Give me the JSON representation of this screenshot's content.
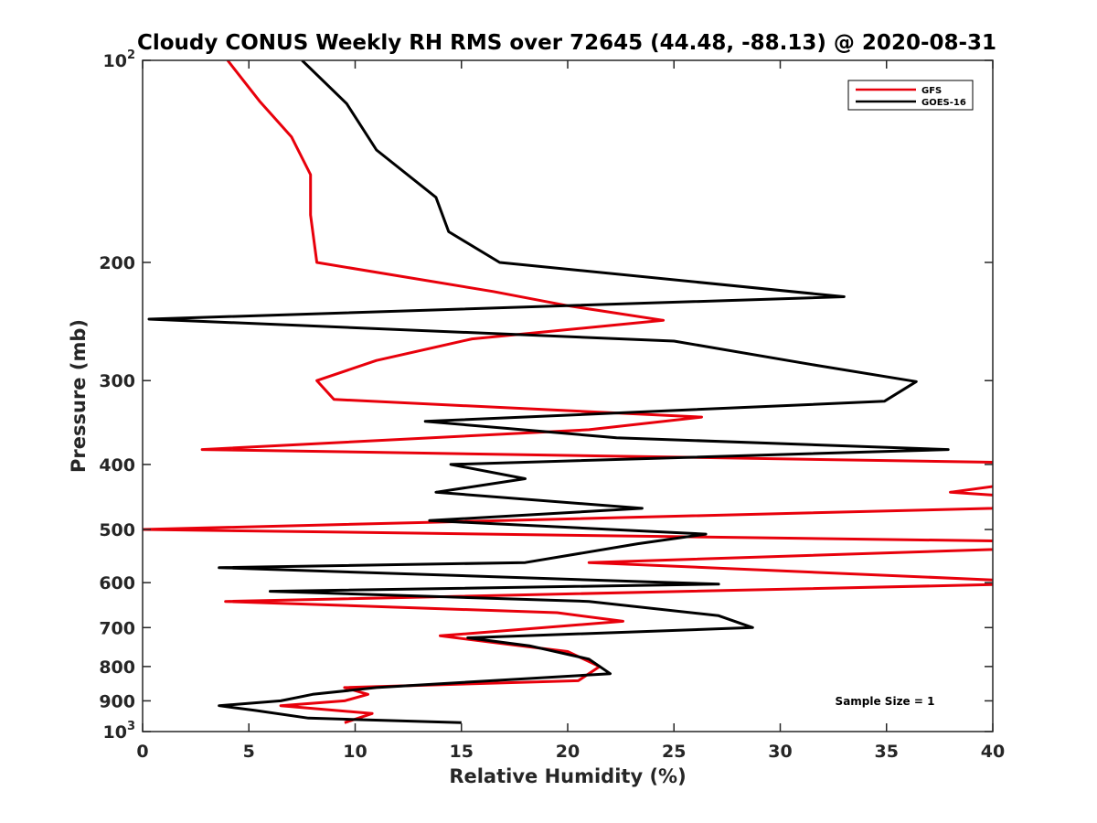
{
  "chart_data": {
    "type": "line",
    "title": "Cloudy CONUS Weekly RH RMS over 72645 (44.48, -88.13) @ 2020-08-31",
    "xlabel": "Relative Humidity (%)",
    "ylabel": "Pressure (mb)",
    "xlim": [
      0,
      40
    ],
    "ylim": [
      100,
      1000
    ],
    "y_scale": "log",
    "y_reversed": true,
    "x_ticks": [
      "0",
      "5",
      "10",
      "15",
      "20",
      "25",
      "30",
      "35",
      "40"
    ],
    "y_ticks": [
      {
        "value": 100,
        "base": "10",
        "exp": "2"
      },
      {
        "value": 200,
        "label": "200"
      },
      {
        "value": 300,
        "label": "300"
      },
      {
        "value": 400,
        "label": "400"
      },
      {
        "value": 500,
        "label": "500"
      },
      {
        "value": 600,
        "label": "600"
      },
      {
        "value": 700,
        "label": "700"
      },
      {
        "value": 800,
        "label": "800"
      },
      {
        "value": 900,
        "label": "900"
      },
      {
        "value": 1000,
        "base": "10",
        "exp": "3"
      }
    ],
    "legend_position": "top-right",
    "annotation": "Sample Size = 1",
    "series": [
      {
        "name": "GFS",
        "color": "#e8000b",
        "points": [
          [
            4.0,
            100
          ],
          [
            5.5,
            115
          ],
          [
            7.0,
            130
          ],
          [
            7.9,
            148
          ],
          [
            7.9,
            170
          ],
          [
            8.2,
            200
          ],
          [
            16.5,
            221
          ],
          [
            20.0,
            232
          ],
          [
            24.5,
            244
          ],
          [
            15.5,
            260
          ],
          [
            11.0,
            280
          ],
          [
            8.2,
            300
          ],
          [
            9.0,
            320
          ],
          [
            26.3,
            340
          ],
          [
            21.0,
            355
          ],
          [
            2.8,
            380
          ],
          [
            40.0,
            397
          ],
          [
            40.3,
            430
          ],
          [
            38.0,
            440
          ],
          [
            40.3,
            445
          ],
          [
            40.0,
            465
          ],
          [
            0.0,
            500
          ],
          [
            40.0,
            520
          ],
          [
            40.3,
            535
          ],
          [
            21.0,
            560
          ],
          [
            40.3,
            595
          ],
          [
            40.0,
            604
          ],
          [
            3.9,
            640
          ],
          [
            19.5,
            665
          ],
          [
            22.6,
            685
          ],
          [
            14.0,
            720
          ],
          [
            17.0,
            740
          ],
          [
            20.0,
            760
          ],
          [
            21.5,
            800
          ],
          [
            20.5,
            840
          ],
          [
            9.5,
            860
          ],
          [
            10.6,
            880
          ],
          [
            9.5,
            900
          ],
          [
            6.5,
            915
          ],
          [
            10.8,
            940
          ],
          [
            9.5,
            970
          ]
        ]
      },
      {
        "name": "GOES-16",
        "color": "#000000",
        "points": [
          [
            7.5,
            100
          ],
          [
            9.6,
            116
          ],
          [
            11.0,
            136
          ],
          [
            13.8,
            160
          ],
          [
            14.4,
            180
          ],
          [
            16.8,
            200
          ],
          [
            33.0,
            225
          ],
          [
            0.3,
            243
          ],
          [
            25.0,
            262
          ],
          [
            31.8,
            285
          ],
          [
            36.4,
            301
          ],
          [
            34.9,
            322
          ],
          [
            13.3,
            345
          ],
          [
            22.3,
            365
          ],
          [
            37.9,
            380
          ],
          [
            14.5,
            400
          ],
          [
            18.0,
            420
          ],
          [
            13.8,
            440
          ],
          [
            23.5,
            465
          ],
          [
            13.5,
            485
          ],
          [
            26.5,
            508
          ],
          [
            23.3,
            525
          ],
          [
            18.0,
            560
          ],
          [
            3.6,
            570
          ],
          [
            27.1,
            603
          ],
          [
            6.0,
            618
          ],
          [
            21.0,
            640
          ],
          [
            27.1,
            672
          ],
          [
            28.7,
            700
          ],
          [
            15.3,
            725
          ],
          [
            18.2,
            745
          ],
          [
            21.0,
            780
          ],
          [
            22.0,
            820
          ],
          [
            11.0,
            860
          ],
          [
            8.0,
            880
          ],
          [
            6.5,
            900
          ],
          [
            3.6,
            915
          ],
          [
            5.3,
            930
          ],
          [
            7.8,
            955
          ],
          [
            15.0,
            970
          ]
        ]
      }
    ]
  }
}
